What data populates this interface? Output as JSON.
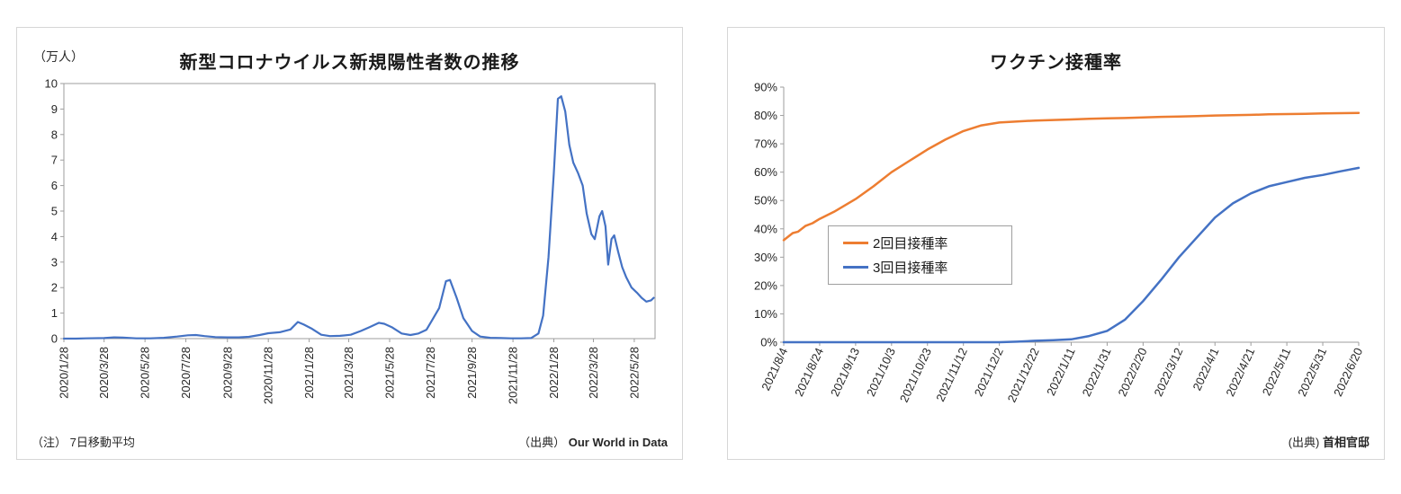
{
  "page": {
    "background": "#ffffff"
  },
  "colors": {
    "blue": "#4472C4",
    "orange": "#ED7D31",
    "axis": "#9e9e9e"
  },
  "chart_data": [
    {
      "type": "line",
      "title": "新型コロナウイルス新規陽性者数の推移",
      "unit_label": "（万人）",
      "note_prefix": "（注）",
      "note_label": "7日移動平均",
      "source_prefix": "（出典）",
      "source_label": "Our World in Data",
      "xlabel": "",
      "ylabel": "万人",
      "ylim": [
        0,
        10
      ],
      "y_tick_step": 1,
      "y_format": "number",
      "grid": false,
      "plot_border": true,
      "legend_position": "none",
      "x_domain": [
        "2020/1/28",
        "2022/6/28"
      ],
      "x_ticks": [
        "2020/1/28",
        "2020/3/28",
        "2020/5/28",
        "2020/7/28",
        "2020/9/28",
        "2020/11/28",
        "2021/1/28",
        "2021/3/28",
        "2021/5/28",
        "2021/7/28",
        "2021/9/28",
        "2021/11/28",
        "2022/1/28",
        "2022/3/28",
        "2022/5/28"
      ],
      "x_label_rotation": -90,
      "series": [
        {
          "color": "#4472C4",
          "points": [
            [
              "2020/1/28",
              0.0
            ],
            [
              "2020/2/15",
              0.0
            ],
            [
              "2020/3/1",
              0.01
            ],
            [
              "2020/3/28",
              0.02
            ],
            [
              "2020/4/12",
              0.05
            ],
            [
              "2020/4/25",
              0.04
            ],
            [
              "2020/5/15",
              0.01
            ],
            [
              "2020/6/5",
              0.01
            ],
            [
              "2020/6/25",
              0.03
            ],
            [
              "2020/7/15",
              0.08
            ],
            [
              "2020/7/31",
              0.13
            ],
            [
              "2020/8/12",
              0.14
            ],
            [
              "2020/8/25",
              0.1
            ],
            [
              "2020/9/10",
              0.06
            ],
            [
              "2020/9/28",
              0.05
            ],
            [
              "2020/10/15",
              0.05
            ],
            [
              "2020/10/30",
              0.07
            ],
            [
              "2020/11/15",
              0.14
            ],
            [
              "2020/11/28",
              0.21
            ],
            [
              "2020/12/15",
              0.25
            ],
            [
              "2020/12/31",
              0.36
            ],
            [
              "2021/1/11",
              0.65
            ],
            [
              "2021/1/20",
              0.55
            ],
            [
              "2021/1/31",
              0.4
            ],
            [
              "2021/2/15",
              0.15
            ],
            [
              "2021/2/28",
              0.1
            ],
            [
              "2021/3/15",
              0.11
            ],
            [
              "2021/3/31",
              0.15
            ],
            [
              "2021/4/15",
              0.3
            ],
            [
              "2021/4/28",
              0.45
            ],
            [
              "2021/5/12",
              0.62
            ],
            [
              "2021/5/20",
              0.58
            ],
            [
              "2021/5/31",
              0.45
            ],
            [
              "2021/6/15",
              0.2
            ],
            [
              "2021/6/28",
              0.14
            ],
            [
              "2021/7/10",
              0.2
            ],
            [
              "2021/7/22",
              0.35
            ],
            [
              "2021/7/31",
              0.75
            ],
            [
              "2021/8/10",
              1.2
            ],
            [
              "2021/8/20",
              2.25
            ],
            [
              "2021/8/26",
              2.3
            ],
            [
              "2021/9/5",
              1.6
            ],
            [
              "2021/9/15",
              0.8
            ],
            [
              "2021/9/28",
              0.3
            ],
            [
              "2021/10/10",
              0.08
            ],
            [
              "2021/10/25",
              0.03
            ],
            [
              "2021/11/10",
              0.02
            ],
            [
              "2021/11/25",
              0.01
            ],
            [
              "2021/12/10",
              0.01
            ],
            [
              "2021/12/25",
              0.02
            ],
            [
              "2022/1/5",
              0.2
            ],
            [
              "2022/1/12",
              0.9
            ],
            [
              "2022/1/20",
              3.2
            ],
            [
              "2022/1/28",
              6.5
            ],
            [
              "2022/2/3",
              9.4
            ],
            [
              "2022/2/8",
              9.5
            ],
            [
              "2022/2/14",
              8.9
            ],
            [
              "2022/2/20",
              7.6
            ],
            [
              "2022/2/26",
              6.9
            ],
            [
              "2022/3/5",
              6.5
            ],
            [
              "2022/3/12",
              6.0
            ],
            [
              "2022/3/18",
              4.9
            ],
            [
              "2022/3/25",
              4.1
            ],
            [
              "2022/3/30",
              3.9
            ],
            [
              "2022/4/6",
              4.8
            ],
            [
              "2022/4/10",
              5.0
            ],
            [
              "2022/4/15",
              4.4
            ],
            [
              "2022/4/19",
              2.9
            ],
            [
              "2022/4/24",
              3.9
            ],
            [
              "2022/4/28",
              4.05
            ],
            [
              "2022/5/4",
              3.4
            ],
            [
              "2022/5/10",
              2.8
            ],
            [
              "2022/5/16",
              2.4
            ],
            [
              "2022/5/24",
              2.0
            ],
            [
              "2022/6/1",
              1.8
            ],
            [
              "2022/6/8",
              1.6
            ],
            [
              "2022/6/15",
              1.45
            ],
            [
              "2022/6/22",
              1.5
            ],
            [
              "2022/6/26",
              1.6
            ]
          ]
        }
      ]
    },
    {
      "type": "line",
      "title": "ワクチン接種率",
      "source_prefix": "(出典)",
      "source_label": "首相官邸",
      "xlabel": "",
      "ylabel": "接種率",
      "ylim": [
        0,
        90
      ],
      "y_tick_step": 10,
      "y_format": "percent",
      "grid": false,
      "plot_border": false,
      "legend_position": "middle-left",
      "x_domain": [
        "2021/8/4",
        "2022/6/20"
      ],
      "x_ticks": [
        "2021/8/4",
        "2021/8/24",
        "2021/9/13",
        "2021/10/3",
        "2021/10/23",
        "2021/11/12",
        "2021/12/2",
        "2021/12/22",
        "2022/1/11",
        "2022/1/31",
        "2022/2/20",
        "2022/3/12",
        "2022/4/1",
        "2022/4/21",
        "2022/5/11",
        "2022/5/31",
        "2022/6/20"
      ],
      "x_label_rotation": -65,
      "series": [
        {
          "name": "2回目接種率",
          "color": "#ED7D31",
          "points": [
            [
              "2021/8/4",
              36
            ],
            [
              "2021/8/9",
              38.5
            ],
            [
              "2021/8/12",
              39
            ],
            [
              "2021/8/16",
              41
            ],
            [
              "2021/8/20",
              42
            ],
            [
              "2021/8/24",
              43.5
            ],
            [
              "2021/9/1",
              46
            ],
            [
              "2021/9/13",
              50.5
            ],
            [
              "2021/9/23",
              55
            ],
            [
              "2021/10/3",
              60
            ],
            [
              "2021/10/13",
              64
            ],
            [
              "2021/10/23",
              68
            ],
            [
              "2021/11/2",
              71.5
            ],
            [
              "2021/11/12",
              74.5
            ],
            [
              "2021/11/22",
              76.5
            ],
            [
              "2021/12/2",
              77.5
            ],
            [
              "2021/12/12",
              77.9
            ],
            [
              "2021/12/22",
              78.2
            ],
            [
              "2022/1/1",
              78.4
            ],
            [
              "2022/1/11",
              78.6
            ],
            [
              "2022/1/21",
              78.8
            ],
            [
              "2022/1/31",
              79.0
            ],
            [
              "2022/2/10",
              79.1
            ],
            [
              "2022/2/20",
              79.3
            ],
            [
              "2022/3/2",
              79.5
            ],
            [
              "2022/3/12",
              79.6
            ],
            [
              "2022/3/22",
              79.8
            ],
            [
              "2022/4/1",
              80.0
            ],
            [
              "2022/4/11",
              80.1
            ],
            [
              "2022/4/21",
              80.2
            ],
            [
              "2022/5/1",
              80.4
            ],
            [
              "2022/5/11",
              80.5
            ],
            [
              "2022/5/21",
              80.6
            ],
            [
              "2022/5/31",
              80.7
            ],
            [
              "2022/6/10",
              80.8
            ],
            [
              "2022/6/20",
              80.9
            ]
          ]
        },
        {
          "name": "3回目接種率",
          "color": "#4472C4",
          "points": [
            [
              "2021/8/4",
              0
            ],
            [
              "2021/12/2",
              0
            ],
            [
              "2021/12/12",
              0.2
            ],
            [
              "2021/12/22",
              0.5
            ],
            [
              "2022/1/1",
              0.7
            ],
            [
              "2022/1/11",
              1.0
            ],
            [
              "2022/1/21",
              2.2
            ],
            [
              "2022/1/31",
              4.0
            ],
            [
              "2022/2/10",
              8.0
            ],
            [
              "2022/2/20",
              14.5
            ],
            [
              "2022/3/2",
              22
            ],
            [
              "2022/3/12",
              30
            ],
            [
              "2022/3/22",
              37
            ],
            [
              "2022/4/1",
              44
            ],
            [
              "2022/4/11",
              49
            ],
            [
              "2022/4/21",
              52.5
            ],
            [
              "2022/5/1",
              55
            ],
            [
              "2022/5/11",
              56.5
            ],
            [
              "2022/5/21",
              58
            ],
            [
              "2022/5/31",
              59
            ],
            [
              "2022/6/10",
              60.3
            ],
            [
              "2022/6/20",
              61.5
            ]
          ]
        }
      ]
    }
  ]
}
